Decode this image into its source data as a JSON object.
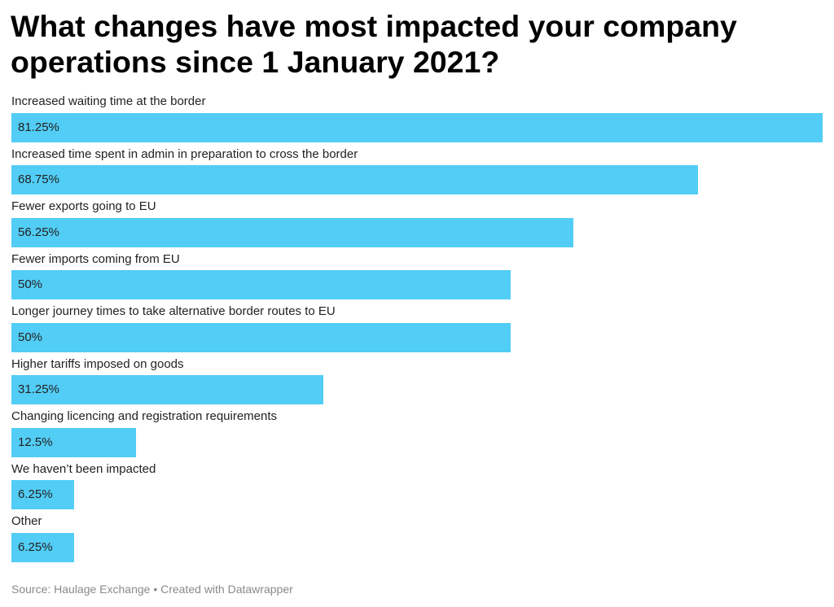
{
  "chart_data": {
    "type": "bar",
    "orientation": "horizontal",
    "title": "What changes have most impacted your company operations since 1 January 2021?",
    "categories": [
      "Increased waiting time at the border",
      "Increased time spent in admin in preparation to cross the border",
      "Fewer exports going to EU",
      "Fewer imports coming from EU",
      "Longer journey times to take alternative border routes to EU",
      "Higher tariffs imposed on goods",
      "Changing licencing and registration requirements",
      "We haven’t been impacted",
      "Other"
    ],
    "values": [
      81.25,
      68.75,
      56.25,
      50,
      50,
      31.25,
      12.5,
      6.25,
      6.25
    ],
    "value_labels": [
      "81.25%",
      "68.75%",
      "56.25%",
      "50%",
      "50%",
      "31.25%",
      "12.5%",
      "6.25%",
      "6.25%"
    ],
    "xlim": [
      0,
      81.25
    ],
    "grid": false,
    "colors": {
      "bar": "#52cdf5"
    }
  },
  "footer": {
    "source": "Source: Haulage Exchange • Created with Datawrapper"
  }
}
